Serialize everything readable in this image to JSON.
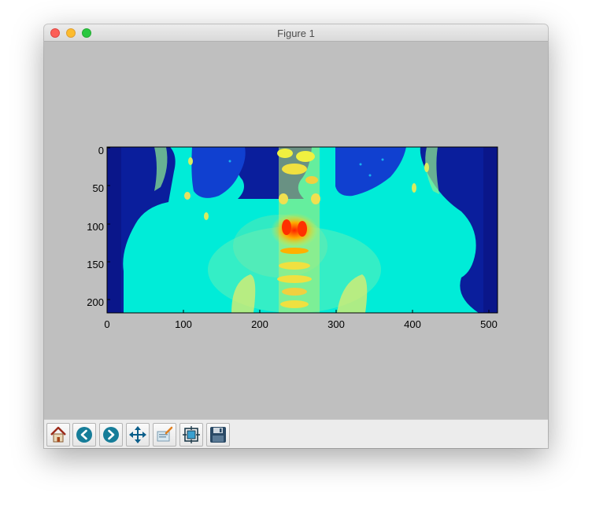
{
  "window": {
    "title": "Figure 1"
  },
  "toolbar": {
    "buttons": [
      {
        "name": "home-button",
        "icon": "home-icon"
      },
      {
        "name": "back-button",
        "icon": "back-arrow-icon"
      },
      {
        "name": "forward-button",
        "icon": "forward-arrow-icon"
      },
      {
        "name": "pan-button",
        "icon": "move-arrows-icon"
      },
      {
        "name": "zoom-button",
        "icon": "zoom-rect-icon"
      },
      {
        "name": "configure-subplots-button",
        "icon": "subplots-icon"
      },
      {
        "name": "save-button",
        "icon": "floppy-disk-icon"
      }
    ]
  },
  "chart_data": {
    "type": "heatmap",
    "colormap": "jet",
    "x_ticks": [
      "0",
      "100",
      "200",
      "300",
      "400",
      "500"
    ],
    "y_ticks": [
      "0",
      "50",
      "100",
      "150",
      "200"
    ],
    "xlim": [
      0,
      512
    ],
    "ylim": [
      219,
      0
    ],
    "title": "",
    "xlabel": "",
    "ylabel": ""
  }
}
